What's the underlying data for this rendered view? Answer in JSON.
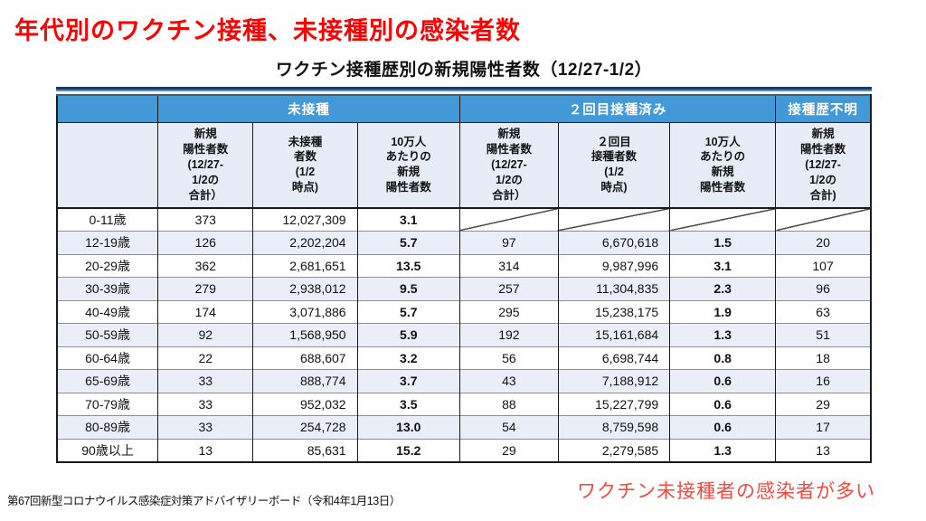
{
  "page": {
    "title": "年代別のワクチン接種、未接種別の感染者数",
    "table_title": "ワクチン接種歴別の新規陽性者数（12/27-1/2）",
    "footnote": "第67回新型コロナウイルス感染症対策アドバイザリーボード（令和4年1月13日）",
    "annotation": "ワクチン未接種者の感染者が多い"
  },
  "colors": {
    "title_red": "#ff0000",
    "annotation_red": "#f4493f",
    "header_blue": "#4398d8",
    "rule_navy": "#1f3864",
    "rule_blue": "#4a8fd3",
    "subheader_bg": "#e7edf6",
    "row_alt_bg": "#e9eef8"
  },
  "table": {
    "groups": [
      {
        "label": "未接種",
        "span": 3
      },
      {
        "label": "２回目接種済み",
        "span": 3
      },
      {
        "label": "接種歴不明",
        "span": 1
      }
    ],
    "columns": [
      {
        "label": "新規\n陽性者数\n(12/27-\n1/2の\n合計）"
      },
      {
        "label": "未接種\n者数\n(1/2\n時点)"
      },
      {
        "label": "10万人\nあたりの\n新規\n陽性者数"
      },
      {
        "label": "新規\n陽性者数\n(12/27-\n1/2の\n合計）"
      },
      {
        "label": "２回目\n接種者数\n(1/2\n時点)"
      },
      {
        "label": "10万人\nあたりの\n新規\n陽性者数"
      },
      {
        "label": "新規\n陽性者数\n(12/27-\n1/2の\n合計)"
      }
    ],
    "rows": [
      {
        "age": "0-11歳",
        "cells": [
          "373",
          "12,027,309",
          "3.1",
          "",
          "",
          "",
          ""
        ]
      },
      {
        "age": "12-19歳",
        "cells": [
          "126",
          "2,202,204",
          "5.7",
          "97",
          "6,670,618",
          "1.5",
          "20"
        ]
      },
      {
        "age": "20-29歳",
        "cells": [
          "362",
          "2,681,651",
          "13.5",
          "314",
          "9,987,996",
          "3.1",
          "107"
        ]
      },
      {
        "age": "30-39歳",
        "cells": [
          "279",
          "2,938,012",
          "9.5",
          "257",
          "11,304,835",
          "2.3",
          "96"
        ]
      },
      {
        "age": "40-49歳",
        "cells": [
          "174",
          "3,071,886",
          "5.7",
          "295",
          "15,238,175",
          "1.9",
          "63"
        ]
      },
      {
        "age": "50-59歳",
        "cells": [
          "92",
          "1,568,950",
          "5.9",
          "192",
          "15,161,684",
          "1.3",
          "51"
        ]
      },
      {
        "age": "60-64歳",
        "cells": [
          "22",
          "688,607",
          "3.2",
          "56",
          "6,698,744",
          "0.8",
          "18"
        ]
      },
      {
        "age": "65-69歳",
        "cells": [
          "33",
          "888,774",
          "3.7",
          "43",
          "7,188,912",
          "0.6",
          "16"
        ]
      },
      {
        "age": "70-79歳",
        "cells": [
          "33",
          "952,032",
          "3.5",
          "88",
          "15,227,799",
          "0.6",
          "29"
        ]
      },
      {
        "age": "80-89歳",
        "cells": [
          "33",
          "254,728",
          "13.0",
          "54",
          "8,759,598",
          "0.6",
          "17"
        ]
      },
      {
        "age": "90歳以上",
        "cells": [
          "13",
          "85,631",
          "15.2",
          "29",
          "2,279,585",
          "1.3",
          "13"
        ]
      }
    ]
  }
}
